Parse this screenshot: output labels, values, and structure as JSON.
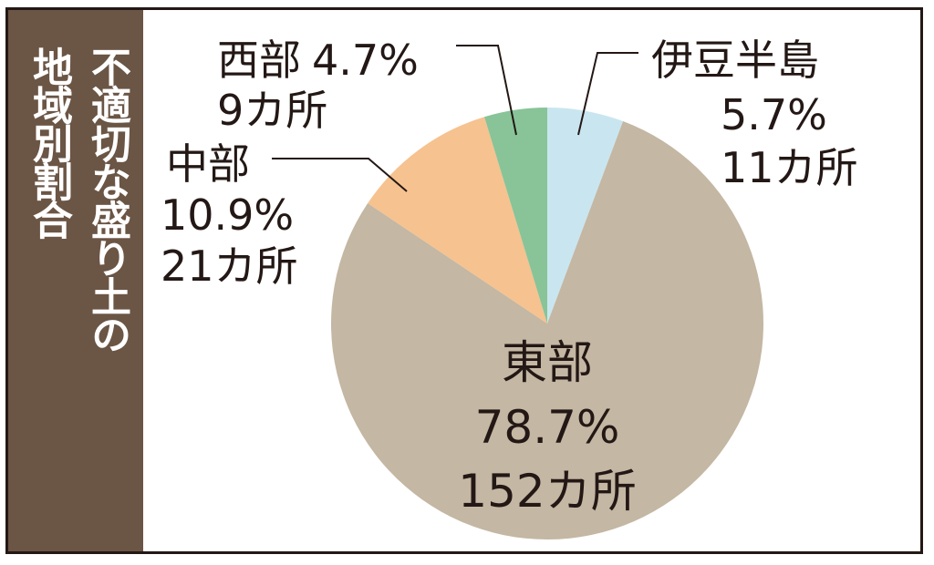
{
  "title_line1": "不適切な盛り土の",
  "title_line2": "地域別割合",
  "colors": {
    "sidebar": "#6b5545",
    "border": "#231815",
    "leader": "#231815"
  },
  "chart_data": {
    "type": "pie",
    "title": "不適切な盛り土の地域別割合",
    "start_angle_deg": 0,
    "direction": "clockwise",
    "slices": [
      {
        "label": "伊豆半島",
        "percent": 5.7,
        "percent_text": "5.7%",
        "count": 11,
        "count_text": "11カ所",
        "color": "#c9e6f0"
      },
      {
        "label": "東部",
        "percent": 78.7,
        "percent_text": "78.7%",
        "count": 152,
        "count_text": "152カ所",
        "color": "#c4b7a3"
      },
      {
        "label": "中部",
        "percent": 10.9,
        "percent_text": "10.9%",
        "count": 21,
        "count_text": "21カ所",
        "color": "#f6c28f"
      },
      {
        "label": "西部",
        "percent": 4.7,
        "percent_text": "4.7%",
        "count": 9,
        "count_text": "9カ所",
        "color": "#88c498"
      }
    ]
  }
}
